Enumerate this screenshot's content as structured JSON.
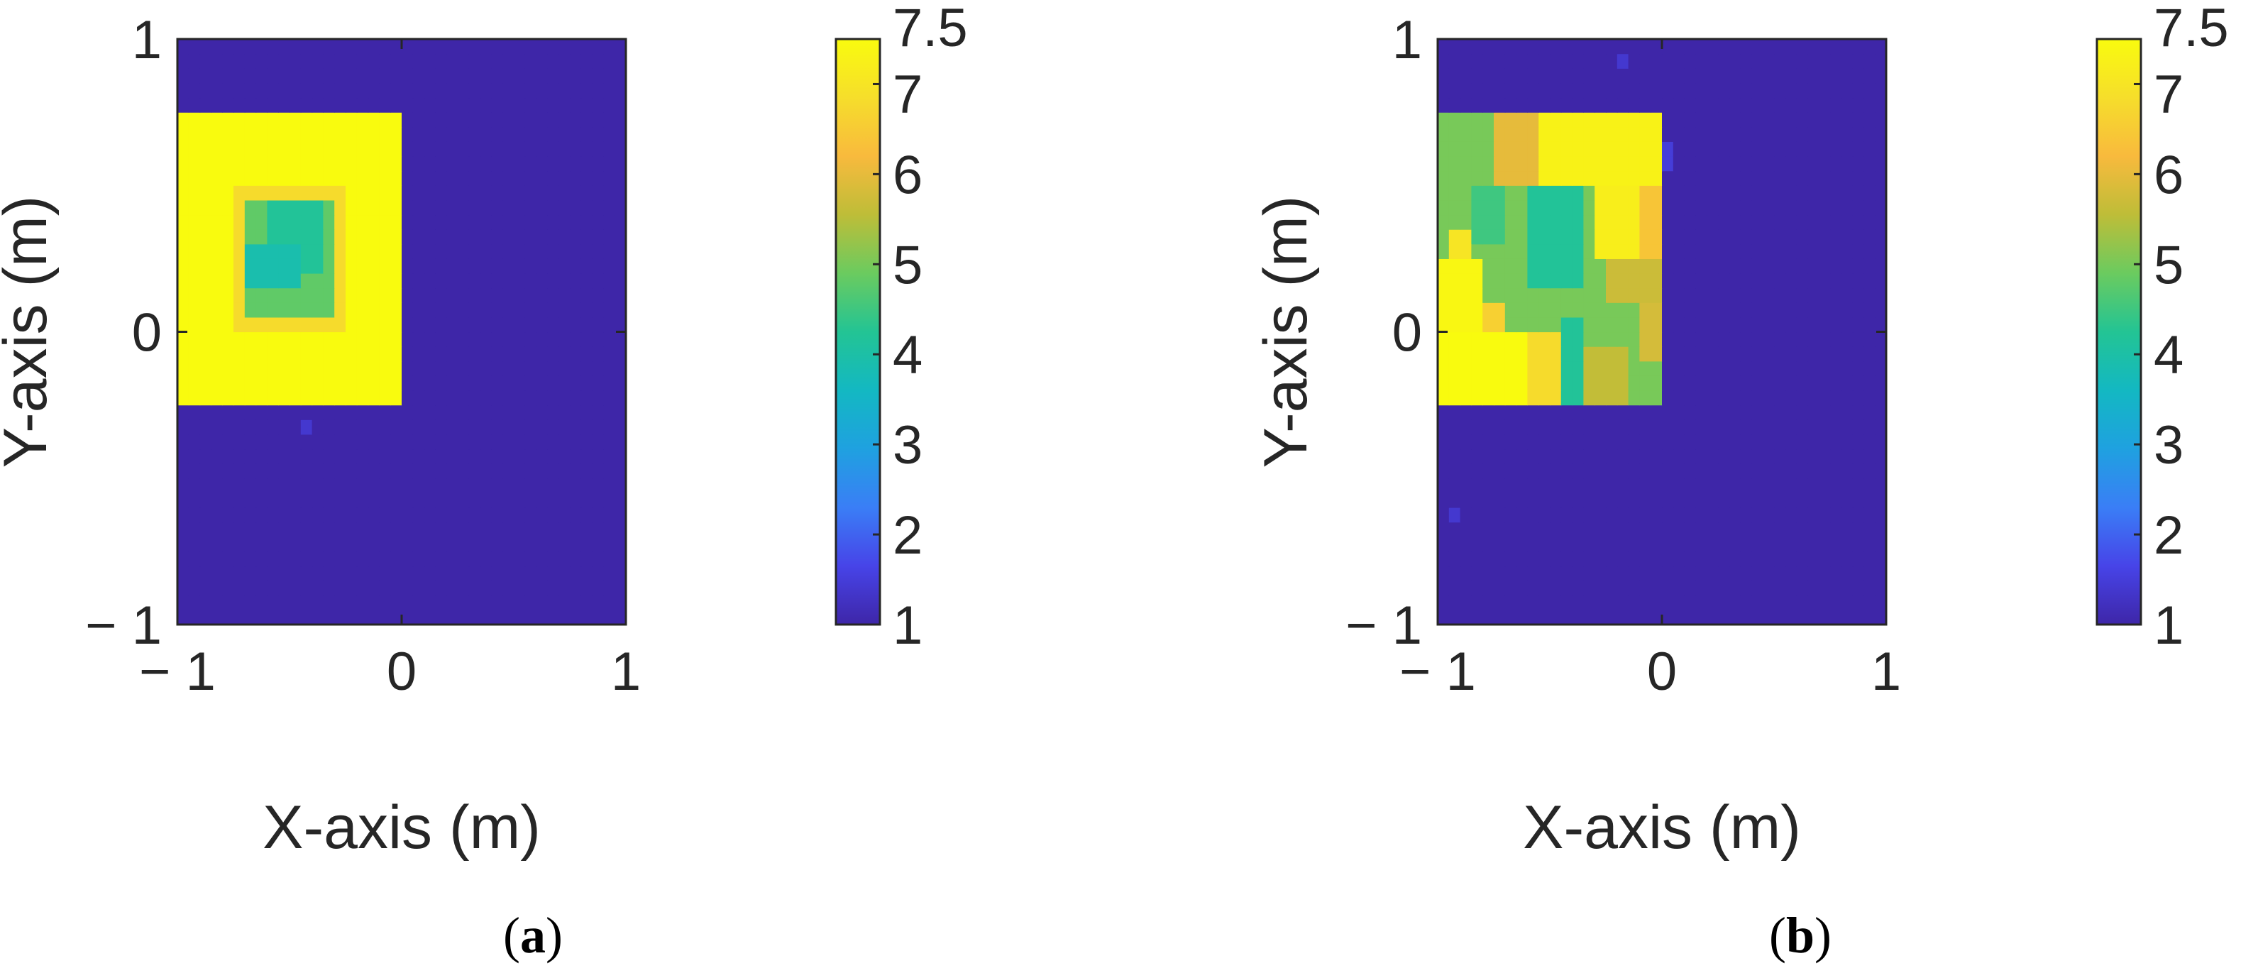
{
  "colorscale": {
    "name": "parula",
    "stops": [
      [
        0.0,
        "#3e26a8"
      ],
      [
        0.1,
        "#4744e8"
      ],
      [
        0.2,
        "#3a7ef6"
      ],
      [
        0.3,
        "#1fa1e0"
      ],
      [
        0.4,
        "#13b8c2"
      ],
      [
        0.5,
        "#23c494"
      ],
      [
        0.6,
        "#6bcb5f"
      ],
      [
        0.7,
        "#bebd38"
      ],
      [
        0.8,
        "#f8ba3d"
      ],
      [
        0.9,
        "#f6de2b"
      ],
      [
        1.0,
        "#f9fb0e"
      ]
    ]
  },
  "chart_data": [
    {
      "type": "heatmap",
      "id": "a",
      "caption_letter": "a",
      "caption_open": "(",
      "caption_close": ")",
      "xlabel": "X-axis (m)",
      "ylabel": "Y-axis (m)",
      "xlim": [
        -1,
        1
      ],
      "ylim": [
        -1,
        1
      ],
      "xticks": [
        -1,
        0,
        1
      ],
      "xtick_labels": [
        "− 1",
        "0",
        "1"
      ],
      "yticks": [
        -1,
        0,
        1
      ],
      "ytick_labels": [
        "− 1",
        "0",
        "1"
      ],
      "clim": [
        1,
        7.5
      ],
      "colorbar_ticks": [
        1,
        2,
        3,
        4,
        5,
        6,
        7,
        7.5
      ],
      "colorbar_tick_labels": [
        "1",
        "2",
        "3",
        "4",
        "5",
        "6",
        "7",
        "7.5"
      ],
      "grid": {
        "nx": 40,
        "ny": 40,
        "background": 1
      },
      "regions": [
        {
          "x": [
            -1.0,
            0.0
          ],
          "y": [
            -0.25,
            0.75
          ],
          "value": 7.5
        },
        {
          "x": [
            -0.75,
            -0.25
          ],
          "y": [
            0.0,
            0.5
          ],
          "value": 6.8
        },
        {
          "x": [
            -0.7,
            -0.3
          ],
          "y": [
            0.05,
            0.45
          ],
          "value": 4.8
        },
        {
          "x": [
            -0.6,
            -0.35
          ],
          "y": [
            0.2,
            0.45
          ],
          "value": 4.2
        },
        {
          "x": [
            -0.7,
            -0.45
          ],
          "y": [
            0.15,
            0.3
          ],
          "value": 3.9
        },
        {
          "x": [
            -0.45,
            -0.4
          ],
          "y": [
            -0.35,
            -0.3
          ],
          "value": 1.4
        }
      ]
    },
    {
      "type": "heatmap",
      "id": "b",
      "caption_letter": "b",
      "caption_open": "(",
      "caption_close": ")",
      "xlabel": "X-axis (m)",
      "ylabel": "Y-axis (m)",
      "xlim": [
        -1,
        1
      ],
      "ylim": [
        -1,
        1
      ],
      "xticks": [
        -1,
        0,
        1
      ],
      "xtick_labels": [
        "− 1",
        "0",
        "1"
      ],
      "yticks": [
        -1,
        0,
        1
      ],
      "ytick_labels": [
        "− 1",
        "0",
        "1"
      ],
      "clim": [
        1,
        7.5
      ],
      "colorbar_ticks": [
        1,
        2,
        3,
        4,
        5,
        6,
        7,
        7.5
      ],
      "colorbar_tick_labels": [
        "1",
        "2",
        "3",
        "4",
        "5",
        "6",
        "7",
        "7.5"
      ],
      "grid": {
        "nx": 40,
        "ny": 40,
        "background": 1
      },
      "regions": [
        {
          "x": [
            -1.0,
            0.0
          ],
          "y": [
            -0.25,
            0.75
          ],
          "value": 5.0
        },
        {
          "x": [
            -0.75,
            -0.55
          ],
          "y": [
            0.5,
            0.75
          ],
          "value": 6.0
        },
        {
          "x": [
            -0.55,
            0.0
          ],
          "y": [
            0.5,
            0.75
          ],
          "value": 7.3
        },
        {
          "x": [
            -0.3,
            -0.1
          ],
          "y": [
            0.25,
            0.5
          ],
          "value": 7.2
        },
        {
          "x": [
            -0.1,
            0.0
          ],
          "y": [
            0.25,
            0.5
          ],
          "value": 6.4
        },
        {
          "x": [
            -0.25,
            0.0
          ],
          "y": [
            0.1,
            0.25
          ],
          "value": 5.7
        },
        {
          "x": [
            -0.1,
            0.0
          ],
          "y": [
            -0.1,
            0.1
          ],
          "value": 5.8
        },
        {
          "x": [
            -0.6,
            -0.35
          ],
          "y": [
            0.15,
            0.5
          ],
          "value": 4.2
        },
        {
          "x": [
            -0.85,
            -0.7
          ],
          "y": [
            0.3,
            0.5
          ],
          "value": 4.5
        },
        {
          "x": [
            -1.0,
            -0.8
          ],
          "y": [
            0.0,
            0.25
          ],
          "value": 7.4
        },
        {
          "x": [
            -0.95,
            -0.85
          ],
          "y": [
            0.25,
            0.35
          ],
          "value": 7.0
        },
        {
          "x": [
            -0.8,
            -0.7
          ],
          "y": [
            0.0,
            0.1
          ],
          "value": 6.6
        },
        {
          "x": [
            -1.0,
            -0.6
          ],
          "y": [
            -0.25,
            0.0
          ],
          "value": 7.5
        },
        {
          "x": [
            -0.6,
            -0.45
          ],
          "y": [
            -0.25,
            0.0
          ],
          "value": 6.8
        },
        {
          "x": [
            -0.45,
            -0.35
          ],
          "y": [
            -0.25,
            0.05
          ],
          "value": 4.2
        },
        {
          "x": [
            -0.35,
            -0.15
          ],
          "y": [
            -0.25,
            -0.05
          ],
          "value": 5.6
        },
        {
          "x": [
            0.0,
            0.05
          ],
          "y": [
            0.55,
            0.65
          ],
          "value": 1.5
        },
        {
          "x": [
            -0.2,
            -0.15
          ],
          "y": [
            0.9,
            0.95
          ],
          "value": 1.4
        },
        {
          "x": [
            -0.95,
            -0.9
          ],
          "y": [
            -0.65,
            -0.6
          ],
          "value": 1.4
        }
      ]
    }
  ]
}
